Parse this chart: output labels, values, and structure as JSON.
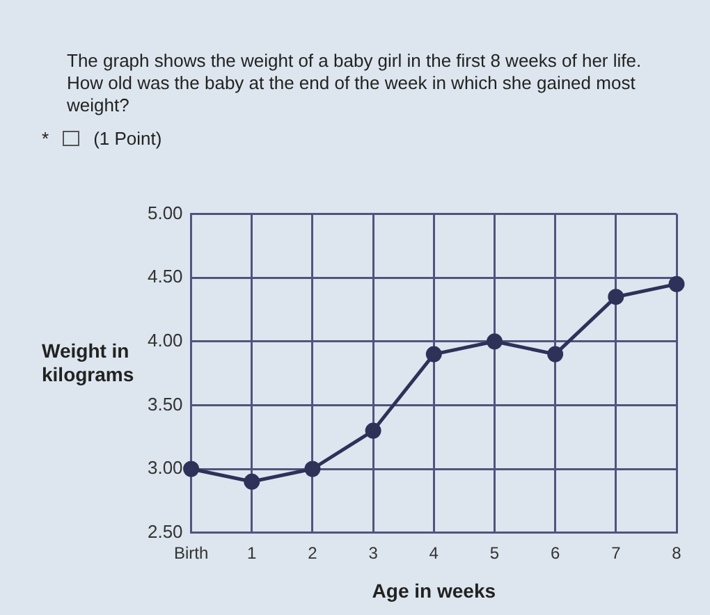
{
  "chart_data": {
    "type": "line",
    "title": "The graph shows the weight of a baby girl in the first 8 weeks of her life. How old was the baby at the end of the week in which she gained most weight?",
    "annotations": [
      "* (1 Point)"
    ],
    "xlabel": "Age in weeks",
    "ylabel": "Weight in kilograms",
    "categories": [
      "Birth",
      "1",
      "2",
      "3",
      "4",
      "5",
      "6",
      "7",
      "8"
    ],
    "series": [
      {
        "color": "#2e3158",
        "values": [
          3.0,
          2.9,
          3.0,
          3.3,
          3.9,
          4.0,
          3.9,
          4.35,
          4.45
        ]
      }
    ],
    "ylim": [
      2.5,
      5
    ],
    "yticks": [
      {
        "value": 2.5,
        "label": "2.50"
      },
      {
        "value": 3,
        "label": "3.00"
      },
      {
        "value": 3.5,
        "label": "3.50"
      },
      {
        "value": 4,
        "label": "4.00"
      },
      {
        "value": 4.5,
        "label": "4.50"
      },
      {
        "value": 5,
        "label": "5.00"
      }
    ],
    "grid": true,
    "legend": false,
    "marker": "circle",
    "line_style": "solid"
  }
}
